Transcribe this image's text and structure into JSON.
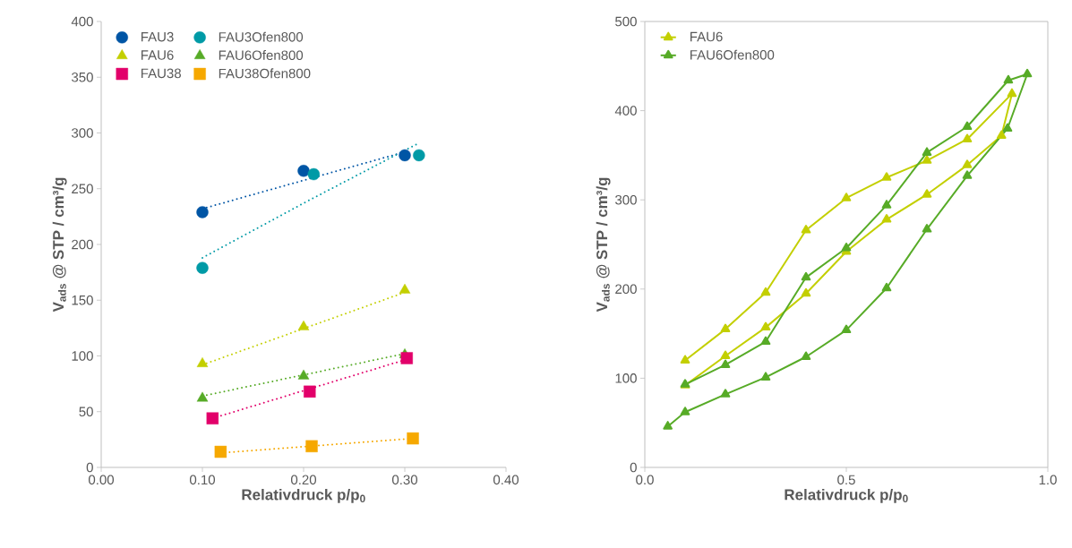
{
  "chart_data": [
    {
      "type": "scatter",
      "xlabel": "Relativdruck p/p$_{0}$",
      "ylabel": "V$_{ads}$ @ STP / cm³/g",
      "xlim": [
        0,
        0.4
      ],
      "ylim": [
        0,
        400
      ],
      "xticks": [
        {
          "value": 0,
          "label": "0.00"
        },
        {
          "value": 0.1,
          "label": "0.10"
        },
        {
          "value": 0.2,
          "label": "0.20"
        },
        {
          "value": 0.3,
          "label": "0.30"
        },
        {
          "value": 0.4,
          "label": "0.40"
        }
      ],
      "yticks": [
        0,
        50,
        100,
        150,
        200,
        250,
        300,
        350,
        400
      ],
      "grid": false,
      "legend": "top",
      "series": [
        {
          "name": "FAU3",
          "color": "#0055a5",
          "marker": "circle",
          "x": [
            0.1,
            0.2,
            0.3
          ],
          "values": [
            229,
            266,
            280
          ]
        },
        {
          "name": "FAU3Ofen800",
          "color": "#009aa6",
          "marker": "circle",
          "x": [
            0.1,
            0.21,
            0.314
          ],
          "values": [
            179,
            263,
            280
          ]
        },
        {
          "name": "FAU6",
          "color": "#c3cf00",
          "marker": "triangle",
          "x": [
            0.1,
            0.2,
            0.3
          ],
          "values": [
            93,
            126,
            159
          ]
        },
        {
          "name": "FAU6Ofen800",
          "color": "#57ab27",
          "marker": "triangle",
          "x": [
            0.1,
            0.2,
            0.3
          ],
          "values": [
            62,
            82,
            101
          ]
        },
        {
          "name": "FAU38",
          "color": "#e2006a",
          "marker": "square",
          "x": [
            0.11,
            0.206,
            0.302
          ],
          "values": [
            44,
            68,
            98
          ]
        },
        {
          "name": "FAU38Ofen800",
          "color": "#f6a800",
          "marker": "square",
          "x": [
            0.118,
            0.208,
            0.308
          ],
          "values": [
            14,
            19,
            26
          ]
        },
        {
          "type": "line",
          "color": "#0055a5",
          "marker": "none",
          "line_style": "dotted",
          "x": [
            0.1,
            0.3
          ],
          "values": [
            232,
            283
          ]
        },
        {
          "type": "line",
          "color": "#009aa6",
          "marker": "none",
          "line_style": "dotted",
          "x": [
            0.1,
            0.2,
            0.314
          ],
          "values": [
            188,
            237,
            291
          ]
        },
        {
          "type": "line",
          "color": "#c3cf00",
          "marker": "none",
          "line_style": "dotted",
          "x": [
            0.1,
            0.3
          ],
          "values": [
            92,
            157
          ]
        },
        {
          "type": "line",
          "color": "#57ab27",
          "marker": "none",
          "line_style": "dotted",
          "x": [
            0.1,
            0.3
          ],
          "values": [
            64,
            102
          ]
        },
        {
          "type": "line",
          "color": "#e2006a",
          "marker": "none",
          "line_style": "dotted",
          "x": [
            0.11,
            0.302
          ],
          "values": [
            44,
            97
          ]
        },
        {
          "type": "line",
          "color": "#f6a800",
          "marker": "none",
          "line_style": "dotted",
          "x": [
            0.118,
            0.308
          ],
          "values": [
            13,
            26
          ]
        }
      ]
    },
    {
      "type": "line",
      "xlabel": "Relativdruck p/p$_{0}$",
      "ylabel": "V$_{ads}$ @ STP / cm³/g",
      "xlim": [
        0,
        1
      ],
      "ylim": [
        0,
        500
      ],
      "xticks": [
        {
          "value": 0,
          "label": "0.0"
        },
        {
          "value": 0.5,
          "label": "0.5"
        },
        {
          "value": 1,
          "label": "1.0"
        }
      ],
      "yticks": [
        0,
        100,
        200,
        300,
        400,
        500
      ],
      "grid": false,
      "legend": "top left",
      "marker": "triangle",
      "line_style": "solid",
      "series": [
        {
          "name": "FAU6",
          "color": "#c3cf00",
          "x": [
            0.1,
            0.2,
            0.3,
            0.4,
            0.5,
            0.6,
            0.7,
            0.8,
            0.885,
            0.911,
            0.8,
            0.7,
            0.6,
            0.5,
            0.4,
            0.3,
            0.2,
            0.1
          ],
          "values": [
            92,
            125,
            157,
            195,
            242,
            278,
            306,
            339,
            372,
            419,
            368,
            344,
            325,
            302,
            266,
            196,
            155,
            120
          ]
        },
        {
          "name": "FAU6Ofen800",
          "color": "#57ab27",
          "x": [
            0.057,
            0.1,
            0.2,
            0.3,
            0.4,
            0.5,
            0.6,
            0.7,
            0.8,
            0.9,
            0.949,
            0.902,
            0.8,
            0.7,
            0.6,
            0.5,
            0.4,
            0.3,
            0.2,
            0.1
          ],
          "values": [
            46,
            62,
            82,
            101,
            124,
            154,
            201,
            267,
            327,
            380,
            441,
            434,
            382,
            353,
            294,
            246,
            213,
            141,
            115,
            93
          ]
        }
      ]
    }
  ]
}
